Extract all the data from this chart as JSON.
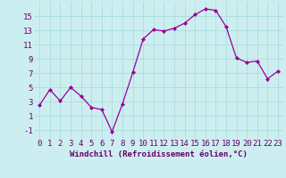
{
  "x": [
    0,
    1,
    2,
    3,
    4,
    5,
    6,
    7,
    8,
    9,
    10,
    11,
    12,
    13,
    14,
    15,
    16,
    17,
    18,
    19,
    20,
    21,
    22,
    23
  ],
  "y": [
    2.5,
    4.7,
    3.1,
    5.0,
    3.8,
    2.2,
    1.9,
    -1.2,
    2.7,
    7.1,
    11.8,
    13.1,
    12.9,
    13.3,
    14.0,
    15.2,
    16.0,
    15.8,
    13.5,
    9.1,
    8.5,
    8.7,
    6.2,
    7.3
  ],
  "line_color": "#990099",
  "marker": "D",
  "markersize": 2.0,
  "linewidth": 0.9,
  "bg_color": "#cdeef0",
  "grid_color": "#aadddd",
  "xlabel": "Windchill (Refroidissement éolien,°C)",
  "xlabel_fontsize": 6.5,
  "xtick_labels": [
    "0",
    "1",
    "2",
    "3",
    "4",
    "5",
    "6",
    "7",
    "8",
    "9",
    "10",
    "11",
    "12",
    "13",
    "14",
    "15",
    "16",
    "17",
    "18",
    "19",
    "20",
    "21",
    "22",
    "23"
  ],
  "ytick_values": [
    -1,
    1,
    3,
    5,
    7,
    9,
    11,
    13,
    15
  ],
  "ylim": [
    -2.2,
    17.0
  ],
  "xlim": [
    -0.5,
    23.5
  ],
  "tick_fontsize": 6.5,
  "axis_color": "#660066"
}
